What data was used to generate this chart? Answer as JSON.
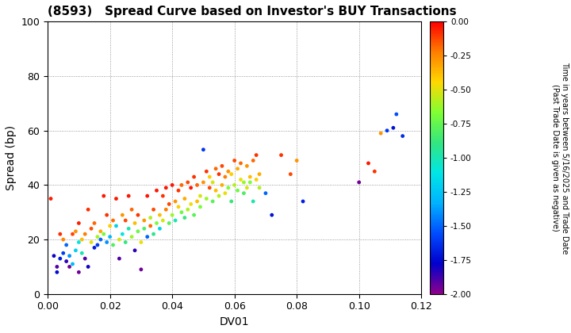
{
  "title": "(8593)   Spread Curve based on Investor's BUY Transactions",
  "xlabel": "DV01",
  "ylabel": "Spread (bp)",
  "xlim": [
    0.0,
    0.12
  ],
  "ylim": [
    0,
    100
  ],
  "xticks": [
    0.0,
    0.02,
    0.04,
    0.06,
    0.08,
    0.1,
    0.12
  ],
  "yticks": [
    0,
    20,
    40,
    60,
    80,
    100
  ],
  "cbar_label_line1": "Time in years between 5/16/2025 and Trade Date",
  "cbar_label_line2": "(Past Trade Date is given as negative)",
  "cbar_vmin": -2.0,
  "cbar_vmax": 0.0,
  "cbar_ticks": [
    0.0,
    -0.25,
    -0.5,
    -0.75,
    -1.0,
    -1.25,
    -1.5,
    -1.75,
    -2.0
  ],
  "marker_size": 12,
  "points": [
    [
      0.001,
      35,
      -0.05
    ],
    [
      0.002,
      14,
      -1.8
    ],
    [
      0.003,
      10,
      -1.9
    ],
    [
      0.003,
      8,
      -1.75
    ],
    [
      0.004,
      13,
      -1.7
    ],
    [
      0.004,
      22,
      -0.08
    ],
    [
      0.005,
      15,
      -1.6
    ],
    [
      0.005,
      20,
      -0.25
    ],
    [
      0.006,
      18,
      -1.5
    ],
    [
      0.006,
      12,
      -1.85
    ],
    [
      0.007,
      10,
      -1.95
    ],
    [
      0.007,
      14,
      -1.4
    ],
    [
      0.008,
      22,
      -0.12
    ],
    [
      0.008,
      11,
      -1.3
    ],
    [
      0.009,
      23,
      -0.28
    ],
    [
      0.009,
      16,
      -1.2
    ],
    [
      0.01,
      26,
      -0.06
    ],
    [
      0.01,
      19,
      -1.1
    ],
    [
      0.01,
      8,
      -1.95
    ],
    [
      0.011,
      20,
      -0.38
    ],
    [
      0.011,
      15,
      -1.0
    ],
    [
      0.012,
      13,
      -1.9
    ],
    [
      0.012,
      22,
      -0.22
    ],
    [
      0.013,
      31,
      -0.08
    ],
    [
      0.013,
      10,
      -1.8
    ],
    [
      0.014,
      19,
      -0.5
    ],
    [
      0.014,
      24,
      -0.14
    ],
    [
      0.015,
      17,
      -1.7
    ],
    [
      0.015,
      26,
      -0.18
    ],
    [
      0.016,
      21,
      -0.6
    ],
    [
      0.016,
      18,
      -1.6
    ],
    [
      0.017,
      23,
      -0.33
    ],
    [
      0.017,
      20,
      -1.5
    ],
    [
      0.018,
      36,
      -0.04
    ],
    [
      0.018,
      22,
      -0.7
    ],
    [
      0.019,
      19,
      -1.4
    ],
    [
      0.019,
      29,
      -0.09
    ],
    [
      0.02,
      25,
      -0.42
    ],
    [
      0.02,
      21,
      -1.3
    ],
    [
      0.021,
      18,
      -0.8
    ],
    [
      0.021,
      27,
      -0.19
    ],
    [
      0.022,
      25,
      -1.2
    ],
    [
      0.022,
      35,
      -0.04
    ],
    [
      0.023,
      13,
      -1.9
    ],
    [
      0.023,
      20,
      -0.52
    ],
    [
      0.024,
      29,
      -0.28
    ],
    [
      0.024,
      22,
      -1.1
    ],
    [
      0.025,
      27,
      -0.13
    ],
    [
      0.025,
      19,
      -0.88
    ],
    [
      0.026,
      36,
      -0.04
    ],
    [
      0.026,
      24,
      -1.0
    ],
    [
      0.027,
      21,
      -0.62
    ],
    [
      0.027,
      31,
      -0.18
    ],
    [
      0.028,
      16,
      -1.85
    ],
    [
      0.028,
      26,
      -0.38
    ],
    [
      0.029,
      23,
      -0.72
    ],
    [
      0.029,
      29,
      -0.09
    ],
    [
      0.03,
      9,
      -1.95
    ],
    [
      0.03,
      19,
      -0.48
    ],
    [
      0.031,
      27,
      -0.28
    ],
    [
      0.031,
      24,
      -0.82
    ],
    [
      0.032,
      36,
      -0.04
    ],
    [
      0.032,
      21,
      -1.5
    ],
    [
      0.033,
      28,
      -0.58
    ],
    [
      0.033,
      25,
      -0.18
    ],
    [
      0.034,
      31,
      -0.13
    ],
    [
      0.034,
      22,
      -0.92
    ],
    [
      0.035,
      38,
      -0.04
    ],
    [
      0.035,
      26,
      -0.68
    ],
    [
      0.036,
      29,
      -0.38
    ],
    [
      0.036,
      24,
      -1.2
    ],
    [
      0.037,
      36,
      -0.09
    ],
    [
      0.037,
      27,
      -0.52
    ],
    [
      0.038,
      39,
      -0.04
    ],
    [
      0.038,
      31,
      -0.22
    ],
    [
      0.039,
      26,
      -0.78
    ],
    [
      0.039,
      33,
      -0.13
    ],
    [
      0.04,
      40,
      -0.04
    ],
    [
      0.04,
      29,
      -0.62
    ],
    [
      0.041,
      34,
      -0.28
    ],
    [
      0.041,
      27,
      -1.0
    ],
    [
      0.042,
      32,
      -0.42
    ],
    [
      0.042,
      38,
      -0.09
    ],
    [
      0.043,
      30,
      -0.72
    ],
    [
      0.043,
      40,
      -0.18
    ],
    [
      0.044,
      35,
      -0.33
    ],
    [
      0.044,
      28,
      -0.88
    ],
    [
      0.045,
      41,
      -0.13
    ],
    [
      0.045,
      31,
      -0.58
    ],
    [
      0.046,
      39,
      -0.04
    ],
    [
      0.046,
      33,
      -0.48
    ],
    [
      0.047,
      43,
      -0.09
    ],
    [
      0.047,
      29,
      -0.78
    ],
    [
      0.048,
      34,
      -0.38
    ],
    [
      0.048,
      40,
      -0.18
    ],
    [
      0.049,
      36,
      -0.52
    ],
    [
      0.049,
      32,
      -0.68
    ],
    [
      0.05,
      53,
      -1.62
    ],
    [
      0.05,
      41,
      -0.28
    ],
    [
      0.051,
      45,
      -0.09
    ],
    [
      0.051,
      35,
      -0.62
    ],
    [
      0.052,
      43,
      -0.42
    ],
    [
      0.052,
      39,
      -0.13
    ],
    [
      0.053,
      41,
      -0.52
    ],
    [
      0.053,
      34,
      -0.78
    ],
    [
      0.054,
      46,
      -0.18
    ],
    [
      0.054,
      38,
      -0.38
    ],
    [
      0.055,
      44,
      -0.09
    ],
    [
      0.055,
      36,
      -0.58
    ],
    [
      0.056,
      40,
      -0.33
    ],
    [
      0.056,
      47,
      -0.13
    ],
    [
      0.057,
      37,
      -0.48
    ],
    [
      0.057,
      43,
      -0.22
    ],
    [
      0.058,
      45,
      -0.28
    ],
    [
      0.058,
      39,
      -0.68
    ],
    [
      0.059,
      34,
      -0.88
    ],
    [
      0.059,
      44,
      -0.42
    ],
    [
      0.06,
      49,
      -0.13
    ],
    [
      0.06,
      40,
      -0.58
    ],
    [
      0.061,
      46,
      -0.33
    ],
    [
      0.061,
      38,
      -0.72
    ],
    [
      0.062,
      42,
      -0.48
    ],
    [
      0.062,
      48,
      -0.18
    ],
    [
      0.063,
      41,
      -0.62
    ],
    [
      0.063,
      37,
      -0.82
    ],
    [
      0.064,
      47,
      -0.28
    ],
    [
      0.064,
      39,
      -0.52
    ],
    [
      0.065,
      43,
      -0.38
    ],
    [
      0.065,
      41,
      -0.68
    ],
    [
      0.066,
      49,
      -0.18
    ],
    [
      0.066,
      34,
      -0.98
    ],
    [
      0.067,
      51,
      -0.09
    ],
    [
      0.067,
      42,
      -0.42
    ],
    [
      0.068,
      44,
      -0.33
    ],
    [
      0.068,
      39,
      -0.58
    ],
    [
      0.07,
      37,
      -1.5
    ],
    [
      0.072,
      29,
      -1.72
    ],
    [
      0.075,
      51,
      -0.09
    ],
    [
      0.078,
      44,
      -0.13
    ],
    [
      0.08,
      49,
      -0.28
    ],
    [
      0.082,
      34,
      -1.68
    ],
    [
      0.1,
      41,
      -1.95
    ],
    [
      0.103,
      48,
      -0.04
    ],
    [
      0.105,
      45,
      -0.09
    ],
    [
      0.107,
      59,
      -0.28
    ],
    [
      0.109,
      60,
      -1.62
    ],
    [
      0.111,
      61,
      -1.72
    ],
    [
      0.112,
      66,
      -1.55
    ],
    [
      0.114,
      58,
      -1.65
    ]
  ]
}
